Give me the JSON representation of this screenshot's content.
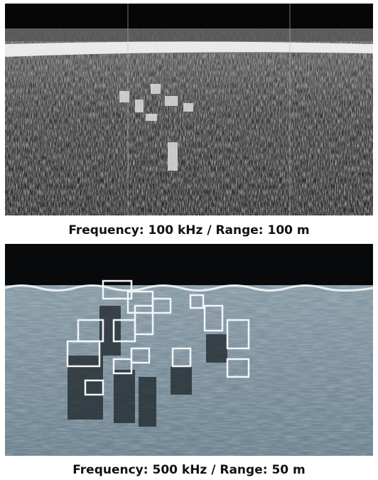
{
  "panels": [
    {
      "caption": "Frequency: 100 kHz / Range: 100 m"
    },
    {
      "caption": "Frequency: 500 kHz / Range: 50 m"
    }
  ]
}
